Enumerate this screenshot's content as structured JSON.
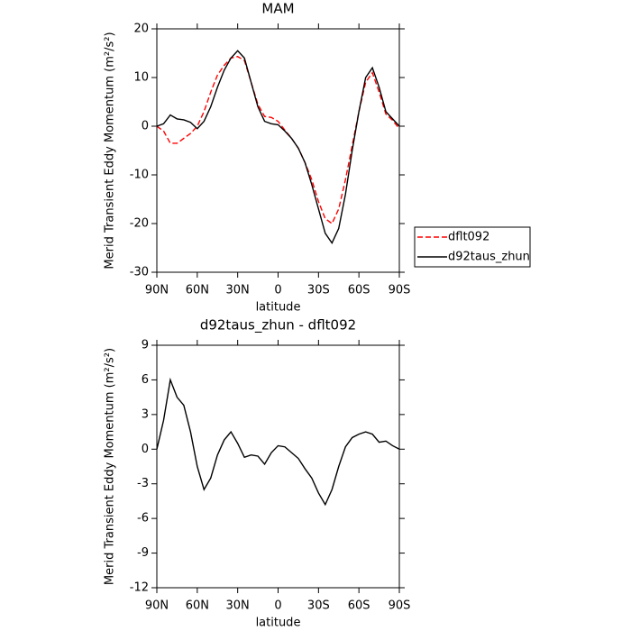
{
  "chart_data": [
    {
      "type": "line",
      "title": "MAM",
      "xlabel": "latitude",
      "ylabel": "Merid Transient Eddy Momentum (m²/s²)",
      "x": [
        90,
        85,
        80,
        75,
        70,
        65,
        60,
        55,
        50,
        45,
        40,
        35,
        30,
        25,
        20,
        15,
        10,
        5,
        0,
        -5,
        -10,
        -15,
        -20,
        -25,
        -30,
        -35,
        -40,
        -45,
        -50,
        -55,
        -60,
        -65,
        -70,
        -75,
        -80,
        -85,
        -90
      ],
      "series": [
        {
          "name": "dflt092",
          "color": "#ff0000",
          "dash": true,
          "values": [
            0,
            -1,
            -3.5,
            -3.5,
            -2.5,
            -1.5,
            0,
            3,
            7,
            10.5,
            12.5,
            14,
            14.3,
            13.5,
            9,
            4.5,
            2,
            1.8,
            1,
            -0.8,
            -2.5,
            -4.5,
            -7.5,
            -11,
            -15.5,
            -19,
            -20,
            -17,
            -11,
            -4,
            3,
            9,
            11,
            7,
            2.5,
            1.2,
            -0.5
          ]
        },
        {
          "name": "d92taus_zhun",
          "color": "#000000",
          "dash": false,
          "values": [
            0,
            0.5,
            2.3,
            1.5,
            1.3,
            0.8,
            -0.5,
            1,
            4,
            8,
            11.5,
            14,
            15.5,
            14,
            9,
            4,
            1,
            0.5,
            0.3,
            -1,
            -2.5,
            -4.5,
            -7.5,
            -12,
            -17,
            -22,
            -24,
            -21,
            -14,
            -5,
            3,
            10,
            12,
            8,
            3,
            1.5,
            0
          ]
        }
      ],
      "xlim": [
        90,
        -90
      ],
      "xticks": [
        {
          "value": 90,
          "label": "90N"
        },
        {
          "value": 60,
          "label": "60N"
        },
        {
          "value": 30,
          "label": "30N"
        },
        0,
        {
          "value": -30,
          "label": "30S"
        },
        {
          "value": -60,
          "label": "60S"
        },
        {
          "value": -90,
          "label": "90S"
        }
      ],
      "ylim": [
        -30,
        20
      ],
      "yticks": [
        -30,
        -20,
        -10,
        0,
        10,
        20
      ],
      "legend": "right"
    },
    {
      "type": "line",
      "title": "d92taus_zhun - dflt092",
      "xlabel": "latitude",
      "ylabel": "Merid Transient Eddy Momentum (m²/s²)",
      "x": [
        90,
        85,
        80,
        75,
        70,
        65,
        60,
        55,
        50,
        45,
        40,
        35,
        30,
        25,
        20,
        15,
        10,
        5,
        0,
        -5,
        -10,
        -15,
        -20,
        -25,
        -30,
        -35,
        -40,
        -45,
        -50,
        -55,
        -60,
        -65,
        -70,
        -75,
        -80,
        -85,
        -90
      ],
      "series": [
        {
          "color": "#000000",
          "dash": false,
          "values": [
            0,
            2.5,
            6,
            4.5,
            3.8,
            1.5,
            -1.5,
            -3.5,
            -2.5,
            -0.5,
            0.8,
            1.5,
            0.5,
            -0.7,
            -0.5,
            -0.6,
            -1.3,
            -0.3,
            0.3,
            0.2,
            -0.3,
            -0.8,
            -1.7,
            -2.5,
            -3.8,
            -4.8,
            -3.5,
            -1.5,
            0.2,
            1,
            1.3,
            1.5,
            1.3,
            0.6,
            0.7,
            0.3,
            0
          ]
        }
      ],
      "xlim": [
        90,
        -90
      ],
      "xticks": [
        {
          "value": 90,
          "label": "90N"
        },
        {
          "value": 60,
          "label": "60N"
        },
        {
          "value": 30,
          "label": "30N"
        },
        0,
        {
          "value": -30,
          "label": "30S"
        },
        {
          "value": -60,
          "label": "60S"
        },
        {
          "value": -90,
          "label": "90S"
        }
      ],
      "ylim": [
        -12,
        9
      ],
      "yticks": [
        -12,
        -9,
        -6,
        -3,
        0,
        3,
        6,
        9
      ]
    }
  ]
}
